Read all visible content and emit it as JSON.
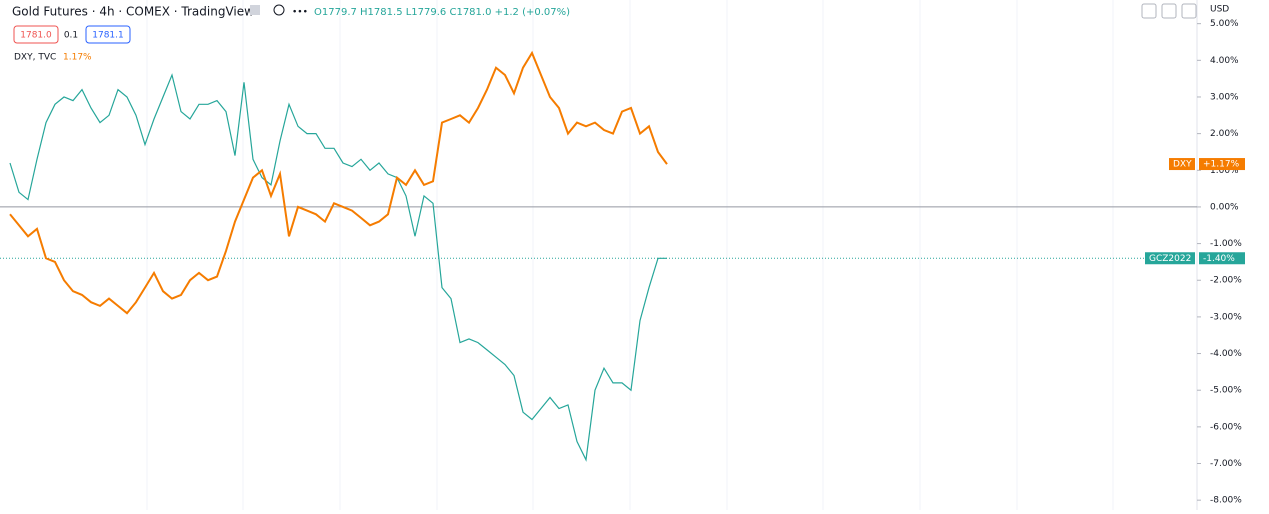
{
  "header": {
    "title": "Gold Futures · 4h · COMEX · TradingView",
    "ohlc": "O1779.7 H1781.5 L1779.6 C1781.0 +1.2 (+0.07%)",
    "bid": "1781.0",
    "spread": "0.1",
    "ask": "1781.1",
    "compare_name": "DXY, TVC",
    "compare_change": "1.17%",
    "currency": "USD"
  },
  "chart_data": {
    "type": "line",
    "zero_line": true,
    "ylim": [
      -8.2,
      5.1
    ],
    "yticks": [
      {
        "value": 5,
        "label": "5.00%"
      },
      {
        "value": 4,
        "label": "4.00%"
      },
      {
        "value": 3,
        "label": "3.00%"
      },
      {
        "value": 2,
        "label": "2.00%"
      },
      {
        "value": 1,
        "label": "1.00%"
      },
      {
        "value": 0,
        "label": "0.00%"
      },
      {
        "value": -1,
        "label": "-1.00%"
      },
      {
        "value": -2,
        "label": "-2.00%"
      },
      {
        "value": -3,
        "label": "-3.00%"
      },
      {
        "value": -4,
        "label": "-4.00%"
      },
      {
        "value": -5,
        "label": "-5.00%"
      },
      {
        "value": -6,
        "label": "-6.00%"
      },
      {
        "value": -7,
        "label": "-7.00%"
      },
      {
        "value": -8,
        "label": "-8.00%"
      }
    ],
    "series": [
      {
        "name": "GCZ2022",
        "color": "#26a69a",
        "last_label": "-1.40%",
        "values": [
          1.2,
          0.4,
          0.2,
          1.3,
          2.3,
          2.8,
          3.0,
          2.9,
          3.2,
          2.7,
          2.3,
          2.5,
          3.2,
          3.0,
          2.5,
          1.7,
          2.4,
          3.0,
          3.6,
          2.6,
          2.4,
          2.8,
          2.8,
          2.9,
          2.6,
          1.4,
          3.4,
          1.3,
          0.8,
          0.6,
          1.8,
          2.8,
          2.2,
          2.0,
          2.0,
          1.6,
          1.6,
          1.2,
          1.1,
          1.3,
          1.0,
          1.2,
          0.9,
          0.8,
          0.3,
          -0.8,
          0.3,
          0.1,
          -2.2,
          -2.5,
          -3.7,
          -3.6,
          -3.7,
          -3.9,
          -4.1,
          -4.3,
          -4.6,
          -5.6,
          -5.8,
          -5.5,
          -5.2,
          -5.5,
          -5.4,
          -6.4,
          -6.9,
          -5.0,
          -4.4,
          -4.8,
          -4.8,
          -5.0,
          -3.1,
          -2.2,
          -1.4,
          -1.4
        ]
      },
      {
        "name": "DXY",
        "color": "#f57c00",
        "last_label": "+1.17%",
        "values": [
          -0.2,
          -0.5,
          -0.8,
          -0.6,
          -1.4,
          -1.5,
          -2.0,
          -2.3,
          -2.4,
          -2.6,
          -2.7,
          -2.5,
          -2.7,
          -2.9,
          -2.6,
          -2.2,
          -1.8,
          -2.3,
          -2.5,
          -2.4,
          -2.0,
          -1.8,
          -2.0,
          -1.9,
          -1.2,
          -0.4,
          0.2,
          0.8,
          1.0,
          0.3,
          0.9,
          -0.8,
          0.0,
          -0.1,
          -0.2,
          -0.4,
          0.1,
          0.0,
          -0.1,
          -0.3,
          -0.5,
          -0.4,
          -0.2,
          0.8,
          0.6,
          1.0,
          0.6,
          0.7,
          2.3,
          2.4,
          2.5,
          2.3,
          2.7,
          3.2,
          3.8,
          3.6,
          3.1,
          3.8,
          4.2,
          3.6,
          3.0,
          2.7,
          2.0,
          2.3,
          2.2,
          2.3,
          2.1,
          2.0,
          2.6,
          2.7,
          2.0,
          2.2,
          1.5,
          1.17
        ]
      }
    ]
  }
}
